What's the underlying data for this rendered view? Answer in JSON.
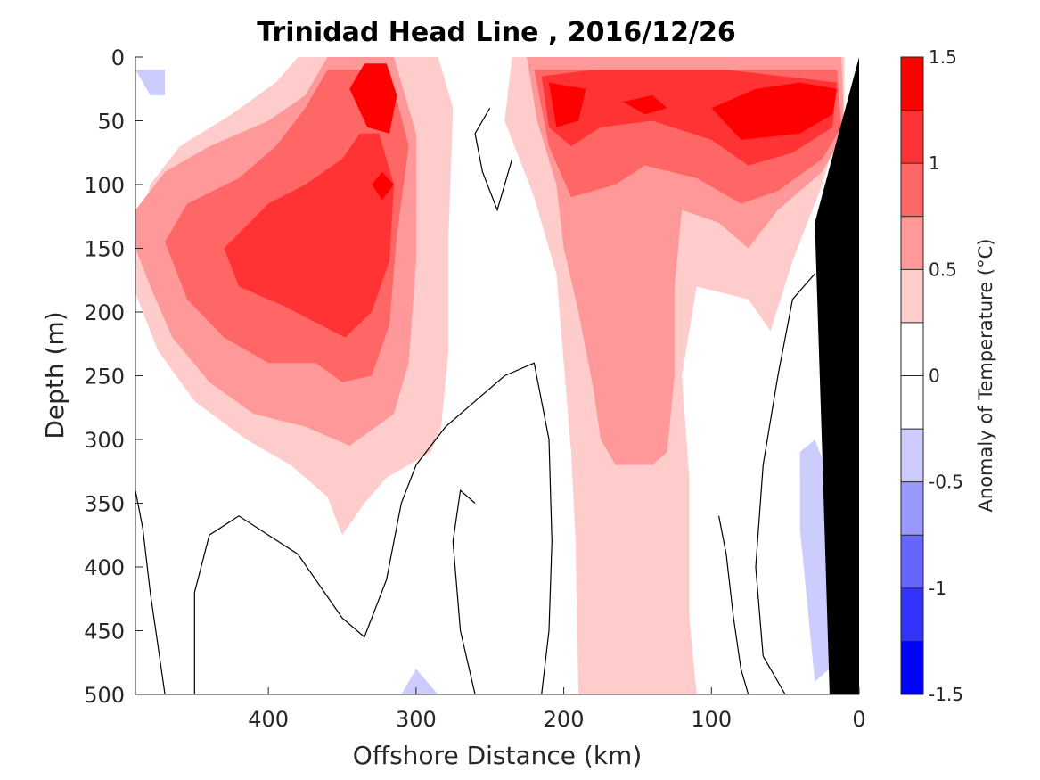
{
  "chart_data": {
    "type": "heatmap",
    "title": "Trinidad Head Line , 2016/12/26",
    "xlabel": "Offshore Distance (km)",
    "ylabel": "Depth (m)",
    "colorbar_label": "Anomaly of Temperature (°C)",
    "x_reversed": true,
    "xlim": [
      0,
      490
    ],
    "ylim": [
      0,
      500
    ],
    "y_reversed": true,
    "x_ticks": [
      400,
      300,
      200,
      100,
      0
    ],
    "y_ticks": [
      0,
      50,
      100,
      150,
      200,
      250,
      300,
      350,
      400,
      450,
      500
    ],
    "colorbar": {
      "range": [
        -1.5,
        1.5
      ],
      "levels": [
        -1.5,
        -1.25,
        -1.0,
        -0.75,
        -0.5,
        -0.25,
        0,
        0.25,
        0.5,
        0.75,
        1.0,
        1.25,
        1.5
      ],
      "tick_labels": [
        "1.5",
        "1",
        "0.5",
        "0",
        "-0.5",
        "-1",
        "-1.5"
      ],
      "tick_values": [
        1.5,
        1,
        0.5,
        0,
        -0.5,
        -1,
        -1.5
      ],
      "colors": [
        "#0000ff",
        "#3333ff",
        "#6666ff",
        "#9999ff",
        "#ccccff",
        "#ffffff",
        "#ffffff",
        "#ffcccc",
        "#ff9999",
        "#ff6666",
        "#ff3333",
        "#ff0000"
      ]
    },
    "colors": {
      "c025": "#ffcccc",
      "c050": "#ff9999",
      "c075": "#ff6666",
      "c100": "#ff3333",
      "c125": "#ff0000",
      "neg025": "#ccccff",
      "contour": "#000000",
      "bathymetry": "#000000"
    },
    "regions": [
      {
        "level": 0.25,
        "points": [
          [
            490,
            155
          ],
          [
            480,
            100
          ],
          [
            460,
            70
          ],
          [
            425,
            45
          ],
          [
            395,
            20
          ],
          [
            380,
            0
          ],
          [
            285,
            0
          ],
          [
            275,
            40
          ],
          [
            278,
            140
          ],
          [
            278,
            230
          ],
          [
            283,
            290
          ],
          [
            290,
            310
          ],
          [
            320,
            330
          ],
          [
            335,
            350
          ],
          [
            350,
            375
          ],
          [
            360,
            345
          ],
          [
            385,
            320
          ],
          [
            415,
            300
          ],
          [
            450,
            270
          ],
          [
            475,
            230
          ],
          [
            490,
            185
          ]
        ]
      },
      {
        "level": 0.5,
        "points": [
          [
            490,
            120
          ],
          [
            470,
            90
          ],
          [
            440,
            70
          ],
          [
            400,
            50
          ],
          [
            375,
            30
          ],
          [
            360,
            0
          ],
          [
            315,
            0
          ],
          [
            300,
            60
          ],
          [
            300,
            160
          ],
          [
            305,
            240
          ],
          [
            315,
            280
          ],
          [
            345,
            305
          ],
          [
            375,
            290
          ],
          [
            410,
            280
          ],
          [
            440,
            255
          ],
          [
            465,
            220
          ],
          [
            480,
            180
          ],
          [
            490,
            150
          ]
        ]
      },
      {
        "level": 0.75,
        "points": [
          [
            470,
            145
          ],
          [
            455,
            115
          ],
          [
            420,
            95
          ],
          [
            395,
            70
          ],
          [
            375,
            40
          ],
          [
            360,
            10
          ],
          [
            318,
            10
          ],
          [
            305,
            70
          ],
          [
            313,
            140
          ],
          [
            318,
            210
          ],
          [
            330,
            250
          ],
          [
            350,
            255
          ],
          [
            368,
            240
          ],
          [
            400,
            240
          ],
          [
            430,
            220
          ],
          [
            455,
            190
          ]
        ]
      },
      {
        "level": 1.0,
        "points": [
          [
            430,
            150
          ],
          [
            400,
            115
          ],
          [
            375,
            100
          ],
          [
            350,
            80
          ],
          [
            338,
            60
          ],
          [
            325,
            60
          ],
          [
            315,
            100
          ],
          [
            318,
            160
          ],
          [
            330,
            200
          ],
          [
            348,
            220
          ],
          [
            365,
            210
          ],
          [
            390,
            195
          ],
          [
            420,
            180
          ]
        ]
      },
      {
        "level": 1.25,
        "points": [
          [
            345,
            25
          ],
          [
            335,
            5
          ],
          [
            320,
            5
          ],
          [
            313,
            30
          ],
          [
            318,
            60
          ],
          [
            333,
            55
          ]
        ]
      },
      {
        "level": 1.25,
        "points": [
          [
            330,
            100
          ],
          [
            323,
            90
          ],
          [
            315,
            100
          ],
          [
            323,
            112
          ]
        ]
      },
      {
        "level": 0.25,
        "points": [
          [
            235,
            0
          ],
          [
            240,
            50
          ],
          [
            220,
            110
          ],
          [
            205,
            170
          ],
          [
            200,
            240
          ],
          [
            195,
            310
          ],
          [
            192,
            380
          ],
          [
            190,
            500
          ],
          [
            110,
            500
          ],
          [
            115,
            440
          ],
          [
            115,
            330
          ],
          [
            120,
            250
          ],
          [
            110,
            180
          ],
          [
            75,
            190
          ],
          [
            60,
            215
          ],
          [
            45,
            160
          ],
          [
            25,
            100
          ],
          [
            10,
            40
          ],
          [
            10,
            0
          ]
        ]
      },
      {
        "level": 0.5,
        "points": [
          [
            225,
            0
          ],
          [
            218,
            50
          ],
          [
            205,
            100
          ],
          [
            200,
            150
          ],
          [
            190,
            200
          ],
          [
            180,
            260
          ],
          [
            175,
            300
          ],
          [
            165,
            320
          ],
          [
            140,
            320
          ],
          [
            130,
            310
          ],
          [
            125,
            250
          ],
          [
            125,
            180
          ],
          [
            120,
            120
          ],
          [
            95,
            130
          ],
          [
            75,
            150
          ],
          [
            55,
            120
          ],
          [
            25,
            90
          ],
          [
            10,
            60
          ],
          [
            12,
            0
          ]
        ]
      },
      {
        "level": 0.75,
        "points": [
          [
            220,
            10
          ],
          [
            210,
            70
          ],
          [
            195,
            110
          ],
          [
            165,
            100
          ],
          [
            145,
            85
          ],
          [
            110,
            95
          ],
          [
            80,
            115
          ],
          [
            55,
            105
          ],
          [
            25,
            80
          ],
          [
            12,
            55
          ],
          [
            15,
            10
          ]
        ]
      },
      {
        "level": 1.0,
        "points": [
          [
            215,
            15
          ],
          [
            210,
            55
          ],
          [
            195,
            70
          ],
          [
            175,
            55
          ],
          [
            140,
            50
          ],
          [
            100,
            65
          ],
          [
            75,
            85
          ],
          [
            45,
            75
          ],
          [
            18,
            55
          ],
          [
            15,
            20
          ],
          [
            90,
            10
          ],
          [
            180,
            10
          ]
        ]
      },
      {
        "level": 1.25,
        "points": [
          [
            210,
            20
          ],
          [
            205,
            55
          ],
          [
            190,
            50
          ],
          [
            185,
            25
          ]
        ]
      },
      {
        "level": 1.25,
        "points": [
          [
            160,
            35
          ],
          [
            145,
            45
          ],
          [
            130,
            40
          ],
          [
            140,
            30
          ]
        ]
      },
      {
        "level": 1.25,
        "points": [
          [
            100,
            40
          ],
          [
            80,
            65
          ],
          [
            40,
            60
          ],
          [
            18,
            45
          ],
          [
            15,
            25
          ],
          [
            40,
            20
          ],
          [
            70,
            25
          ]
        ]
      },
      {
        "level": -0.25,
        "points": [
          [
            490,
            10
          ],
          [
            480,
            30
          ],
          [
            470,
            30
          ],
          [
            470,
            10
          ]
        ]
      },
      {
        "level": -0.25,
        "points": [
          [
            40,
            310
          ],
          [
            30,
            300
          ],
          [
            20,
            330
          ],
          [
            20,
            480
          ],
          [
            30,
            490
          ],
          [
            35,
            430
          ],
          [
            40,
            370
          ]
        ]
      },
      {
        "level": -0.25,
        "points": [
          [
            310,
            500
          ],
          [
            300,
            480
          ],
          [
            285,
            500
          ]
        ]
      }
    ],
    "contours": [
      [
        [
          490,
          340
        ],
        [
          485,
          370
        ],
        [
          480,
          420
        ],
        [
          475,
          460
        ],
        [
          470,
          500
        ]
      ],
      [
        [
          450,
          500
        ],
        [
          450,
          420
        ],
        [
          440,
          375
        ],
        [
          420,
          360
        ],
        [
          380,
          390
        ],
        [
          350,
          440
        ],
        [
          335,
          455
        ],
        [
          320,
          410
        ],
        [
          310,
          350
        ],
        [
          300,
          320
        ],
        [
          280,
          290
        ],
        [
          260,
          270
        ],
        [
          240,
          250
        ],
        [
          220,
          240
        ],
        [
          210,
          300
        ],
        [
          208,
          380
        ],
        [
          210,
          450
        ],
        [
          215,
          500
        ]
      ],
      [
        [
          250,
          40
        ],
        [
          260,
          60
        ],
        [
          255,
          90
        ],
        [
          245,
          120
        ],
        [
          235,
          80
        ]
      ],
      [
        [
          260,
          350
        ],
        [
          270,
          340
        ],
        [
          275,
          380
        ],
        [
          270,
          450
        ],
        [
          260,
          500
        ]
      ],
      [
        [
          95,
          360
        ],
        [
          90,
          390
        ],
        [
          85,
          440
        ],
        [
          80,
          480
        ],
        [
          75,
          500
        ]
      ],
      [
        [
          30,
          170
        ],
        [
          45,
          190
        ],
        [
          55,
          250
        ],
        [
          65,
          320
        ],
        [
          70,
          400
        ],
        [
          65,
          470
        ],
        [
          50,
          500
        ]
      ]
    ],
    "bathymetry": [
      [
        0,
        0
      ],
      [
        0,
        500
      ],
      [
        20,
        500
      ],
      [
        25,
        310
      ],
      [
        30,
        130
      ]
    ]
  }
}
